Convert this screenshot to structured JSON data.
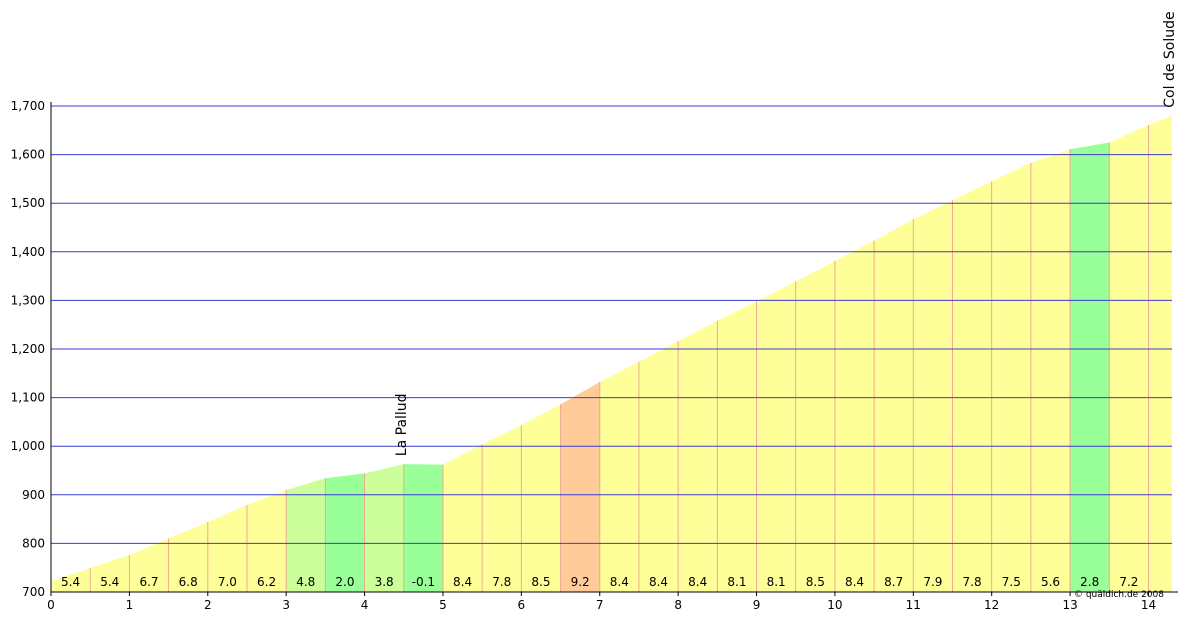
{
  "chart_data": {
    "type": "area",
    "x": [
      0,
      0.5,
      1,
      1.5,
      2,
      2.5,
      3,
      3.5,
      4,
      4.5,
      5,
      5.5,
      6,
      6.5,
      7,
      7.5,
      8,
      8.5,
      9,
      9.5,
      10,
      10.5,
      11,
      11.5,
      12,
      12.5,
      13,
      13.5,
      14,
      14.3
    ],
    "values": [
      722,
      749,
      776,
      810,
      844,
      879,
      910,
      934,
      944,
      963,
      962,
      1004,
      1043,
      1086,
      1132,
      1174,
      1216,
      1258,
      1298,
      1339,
      1381,
      1423,
      1467,
      1506,
      1545,
      1583,
      1611,
      1625,
      1661,
      1680
    ],
    "gradients": [
      5.4,
      5.4,
      6.7,
      6.8,
      7.0,
      6.2,
      4.8,
      2.0,
      3.8,
      -0.1,
      8.4,
      7.8,
      8.5,
      9.2,
      8.4,
      8.4,
      8.4,
      8.1,
      8.1,
      8.5,
      8.4,
      8.7,
      7.9,
      7.8,
      7.5,
      5.6,
      2.8,
      7.2,
      null
    ],
    "gradient_labels": [
      "5.4",
      "5.4",
      "6.7",
      "6.8",
      "7.0",
      "6.2",
      "4.8",
      "2.0",
      "3.8",
      "-0.1",
      "8.4",
      "7.8",
      "8.5",
      "9.2",
      "8.4",
      "8.4",
      "8.4",
      "8.1",
      "8.1",
      "8.5",
      "8.4",
      "8.7",
      "7.9",
      "7.8",
      "7.5",
      "5.6",
      "2.8",
      "7.2",
      null
    ],
    "colors": [
      "#ffff99",
      "#ffff99",
      "#ffff99",
      "#ffff99",
      "#ffff99",
      "#ffff99",
      "#ccff99",
      "#99ff99",
      "#ccff99",
      "#99ff99",
      "#ffff99",
      "#ffff99",
      "#ffff99",
      "#ffcc99",
      "#ffff99",
      "#ffff99",
      "#ffff99",
      "#ffff99",
      "#ffff99",
      "#ffff99",
      "#ffff99",
      "#ffff99",
      "#ffff99",
      "#ffff99",
      "#ffff99",
      "#ffff99",
      "#99ff99",
      "#ffff99",
      "#ffff99"
    ],
    "xlim": [
      0,
      14.3
    ],
    "ylim": [
      700,
      1700
    ],
    "xticks": [
      0,
      1,
      2,
      3,
      4,
      5,
      6,
      7,
      8,
      9,
      10,
      11,
      12,
      13,
      14
    ],
    "yticks": [
      700,
      800,
      900,
      {
        "value": 1000,
        "label": "1,000"
      },
      {
        "value": 1100,
        "label": "1,100"
      },
      {
        "value": 1200,
        "label": "1,200"
      },
      {
        "value": 1300,
        "label": "1,300"
      },
      {
        "value": 1400,
        "label": "1,400"
      },
      {
        "value": 1500,
        "label": "1,500"
      },
      {
        "value": 1600,
        "label": "1,600"
      },
      {
        "value": 1700,
        "label": "1,700"
      }
    ],
    "grid": true,
    "annotations": [
      {
        "text": "La Pallud",
        "x": 4.5
      },
      {
        "text": "Col de Solude",
        "x": 14.3
      }
    ],
    "credit": "© quäldich.de 2008"
  }
}
